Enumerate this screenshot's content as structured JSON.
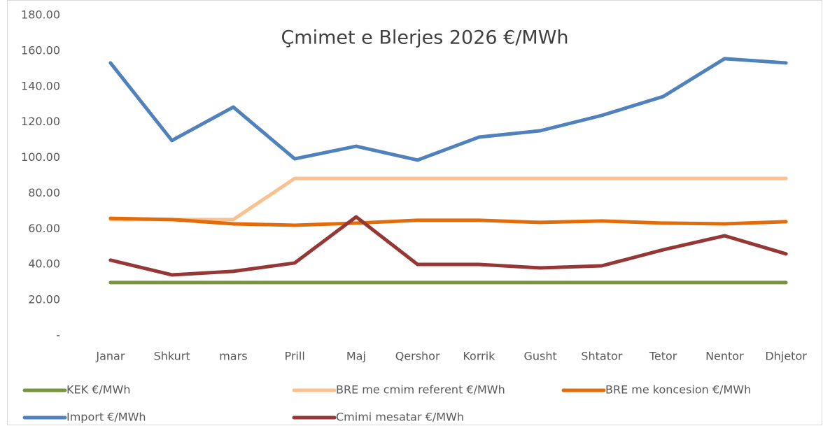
{
  "chart_data": {
    "type": "line",
    "title": "Çmimet e Blerjes 2026 €/MWh",
    "categories": [
      "Janar",
      "Shkurt",
      "mars",
      "Prill",
      "Maj",
      "Qershor",
      "Korrik",
      "Gusht",
      "Shtator",
      "Tetor",
      "Nentor",
      "Dhjetor"
    ],
    "series": [
      {
        "name": "KEK €/MWh",
        "color": "#77933c",
        "values": [
          29.9,
          29.9,
          29.9,
          29.9,
          29.9,
          29.9,
          29.9,
          29.9,
          29.9,
          29.9,
          29.9,
          29.9
        ]
      },
      {
        "name": "BRE me cmim referent  €/MWh",
        "color": "#fac090",
        "values": [
          65.3,
          65.3,
          65.3,
          88.4,
          88.4,
          88.4,
          88.4,
          88.4,
          88.4,
          88.4,
          88.4,
          88.4
        ]
      },
      {
        "name": "BRE me koncesion  €/MWh",
        "color": "#e36c0a",
        "values": [
          66.0,
          65.3,
          62.9,
          62.1,
          63.3,
          64.9,
          64.9,
          63.7,
          64.5,
          63.3,
          62.9,
          64.1
        ]
      },
      {
        "name": "Import €/MWh",
        "color": "#4f81bd",
        "values": [
          153.3,
          109.7,
          128.5,
          99.4,
          106.5,
          98.7,
          111.6,
          115.2,
          123.8,
          134.4,
          155.7,
          153.3
        ]
      },
      {
        "name": "Cmimi mesatar €/MWh",
        "color": "#953735",
        "values": [
          42.5,
          34.2,
          36.2,
          40.9,
          66.8,
          40.1,
          40.1,
          38.1,
          39.3,
          48.3,
          56.2,
          46.0
        ]
      }
    ],
    "ylim": [
      0,
      180
    ],
    "yticks": [
      {
        "value": 0,
        "label": "-"
      },
      {
        "value": 20,
        "label": "20.00"
      },
      {
        "value": 40,
        "label": "40.00"
      },
      {
        "value": 60,
        "label": "60.00"
      },
      {
        "value": 80,
        "label": "80.00"
      },
      {
        "value": 100,
        "label": "100.00"
      },
      {
        "value": 120,
        "label": "120.00"
      },
      {
        "value": 140,
        "label": "140.00"
      },
      {
        "value": 160,
        "label": "160.00"
      },
      {
        "value": 180,
        "label": "180.00"
      }
    ],
    "grid": false,
    "legend": "bottom"
  }
}
